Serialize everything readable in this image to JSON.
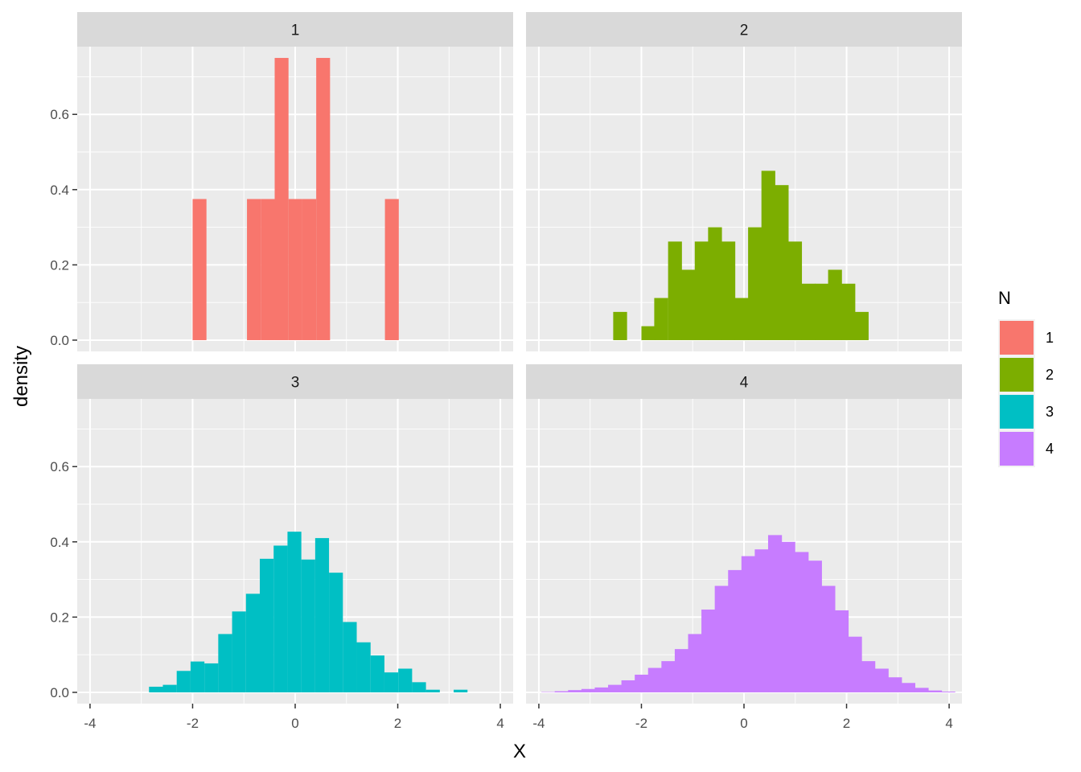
{
  "chart_data": {
    "type": "bar",
    "subtype": "faceted-histogram",
    "xlabel": "X",
    "ylabel": "density",
    "xlim": [
      -4.25,
      4.25
    ],
    "ylim": [
      -0.03,
      0.78
    ],
    "x_ticks": [
      "-4",
      "-2",
      "0",
      "2",
      "4"
    ],
    "y_ticks": [
      "0.0",
      "0.2",
      "0.4",
      "0.6"
    ],
    "grid": true,
    "facet_layout": "2x2",
    "legend": {
      "title": "N",
      "position": "right",
      "entries": [
        {
          "label": "1",
          "color": "#F8766D"
        },
        {
          "label": "2",
          "color": "#7CAE00"
        },
        {
          "label": "3",
          "color": "#00BFC4"
        },
        {
          "label": "4",
          "color": "#C77CFF"
        }
      ]
    },
    "colors": {
      "panel_bg": "#EBEBEB",
      "strip_bg": "#D9D9D9",
      "grid": "#FFFFFF",
      "text": "#4D4D4D"
    },
    "bin_width": 0.27,
    "panels": [
      {
        "label": "1",
        "color": "#F8766D",
        "bins": [
          {
            "x0": -2.0,
            "y": 0.375
          },
          {
            "x0": -0.94,
            "y": 0.375
          },
          {
            "x0": -0.67,
            "y": 0.375
          },
          {
            "x0": -0.4,
            "y": 0.75
          },
          {
            "x0": -0.13,
            "y": 0.375
          },
          {
            "x0": 0.14,
            "y": 0.375
          },
          {
            "x0": 0.41,
            "y": 0.75
          },
          {
            "x0": 1.75,
            "y": 0.375
          }
        ]
      },
      {
        "label": "2",
        "color": "#7CAE00",
        "bins": [
          {
            "x0": -2.55,
            "y": 0.075
          },
          {
            "x0": -2.0,
            "y": 0.037
          },
          {
            "x0": -1.75,
            "y": 0.112
          },
          {
            "x0": -1.48,
            "y": 0.262
          },
          {
            "x0": -1.22,
            "y": 0.187
          },
          {
            "x0": -0.96,
            "y": 0.262
          },
          {
            "x0": -0.7,
            "y": 0.3
          },
          {
            "x0": -0.44,
            "y": 0.262
          },
          {
            "x0": -0.18,
            "y": 0.112
          },
          {
            "x0": 0.08,
            "y": 0.3
          },
          {
            "x0": 0.34,
            "y": 0.45
          },
          {
            "x0": 0.6,
            "y": 0.412
          },
          {
            "x0": 0.86,
            "y": 0.262
          },
          {
            "x0": 1.12,
            "y": 0.15
          },
          {
            "x0": 1.38,
            "y": 0.15
          },
          {
            "x0": 1.64,
            "y": 0.187
          },
          {
            "x0": 1.9,
            "y": 0.15
          },
          {
            "x0": 2.16,
            "y": 0.075
          }
        ]
      },
      {
        "label": "3",
        "color": "#00BFC4",
        "bins": [
          {
            "x0": -2.85,
            "y": 0.015
          },
          {
            "x0": -2.58,
            "y": 0.02
          },
          {
            "x0": -2.31,
            "y": 0.057
          },
          {
            "x0": -2.04,
            "y": 0.082
          },
          {
            "x0": -1.77,
            "y": 0.077
          },
          {
            "x0": -1.5,
            "y": 0.155
          },
          {
            "x0": -1.23,
            "y": 0.215
          },
          {
            "x0": -0.96,
            "y": 0.262
          },
          {
            "x0": -0.69,
            "y": 0.355
          },
          {
            "x0": -0.42,
            "y": 0.39
          },
          {
            "x0": -0.15,
            "y": 0.427
          },
          {
            "x0": 0.12,
            "y": 0.353
          },
          {
            "x0": 0.39,
            "y": 0.41
          },
          {
            "x0": 0.66,
            "y": 0.318
          },
          {
            "x0": 0.93,
            "y": 0.187
          },
          {
            "x0": 1.2,
            "y": 0.133
          },
          {
            "x0": 1.47,
            "y": 0.098
          },
          {
            "x0": 1.74,
            "y": 0.053
          },
          {
            "x0": 2.01,
            "y": 0.063
          },
          {
            "x0": 2.28,
            "y": 0.027
          },
          {
            "x0": 2.55,
            "y": 0.007
          },
          {
            "x0": 3.09,
            "y": 0.007
          }
        ]
      },
      {
        "label": "4",
        "color": "#C77CFF",
        "bins": [
          {
            "x0": -3.95,
            "y": 0.001
          },
          {
            "x0": -3.69,
            "y": 0.003
          },
          {
            "x0": -3.43,
            "y": 0.006
          },
          {
            "x0": -3.17,
            "y": 0.009
          },
          {
            "x0": -2.91,
            "y": 0.013
          },
          {
            "x0": -2.65,
            "y": 0.02
          },
          {
            "x0": -2.39,
            "y": 0.032
          },
          {
            "x0": -2.13,
            "y": 0.047
          },
          {
            "x0": -1.87,
            "y": 0.065
          },
          {
            "x0": -1.61,
            "y": 0.083
          },
          {
            "x0": -1.35,
            "y": 0.115
          },
          {
            "x0": -1.09,
            "y": 0.155
          },
          {
            "x0": -0.83,
            "y": 0.22
          },
          {
            "x0": -0.57,
            "y": 0.283
          },
          {
            "x0": -0.31,
            "y": 0.325
          },
          {
            "x0": -0.05,
            "y": 0.362
          },
          {
            "x0": 0.21,
            "y": 0.38
          },
          {
            "x0": 0.47,
            "y": 0.418
          },
          {
            "x0": 0.73,
            "y": 0.4
          },
          {
            "x0": 0.99,
            "y": 0.373
          },
          {
            "x0": 1.25,
            "y": 0.35
          },
          {
            "x0": 1.51,
            "y": 0.283
          },
          {
            "x0": 1.77,
            "y": 0.218
          },
          {
            "x0": 2.03,
            "y": 0.148
          },
          {
            "x0": 2.29,
            "y": 0.083
          },
          {
            "x0": 2.55,
            "y": 0.063
          },
          {
            "x0": 2.81,
            "y": 0.04
          },
          {
            "x0": 3.07,
            "y": 0.025
          },
          {
            "x0": 3.33,
            "y": 0.012
          },
          {
            "x0": 3.59,
            "y": 0.005
          },
          {
            "x0": 3.85,
            "y": 0.002
          }
        ]
      }
    ]
  }
}
